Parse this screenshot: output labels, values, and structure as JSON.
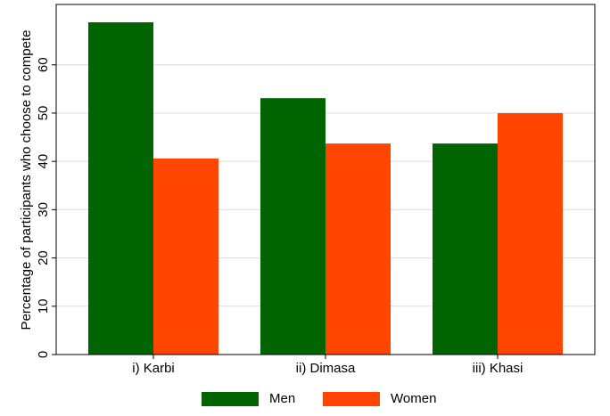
{
  "chart_data": {
    "type": "bar",
    "y_label": "Percentage of participants who choose to compete",
    "categories": [
      "i) Karbi",
      "ii) Dimasa",
      "iii) Khasi"
    ],
    "series": [
      {
        "name": "Men",
        "color": "#006400",
        "values": [
          68.8,
          53.1,
          43.7
        ]
      },
      {
        "name": "Women",
        "color": "#ff4500",
        "values": [
          40.6,
          43.7,
          50.0
        ]
      }
    ],
    "ylim": [
      0,
      72.5
    ],
    "yticks": [
      0,
      10,
      20,
      30,
      40,
      50,
      60
    ],
    "grid": true,
    "legend": "bottom"
  }
}
